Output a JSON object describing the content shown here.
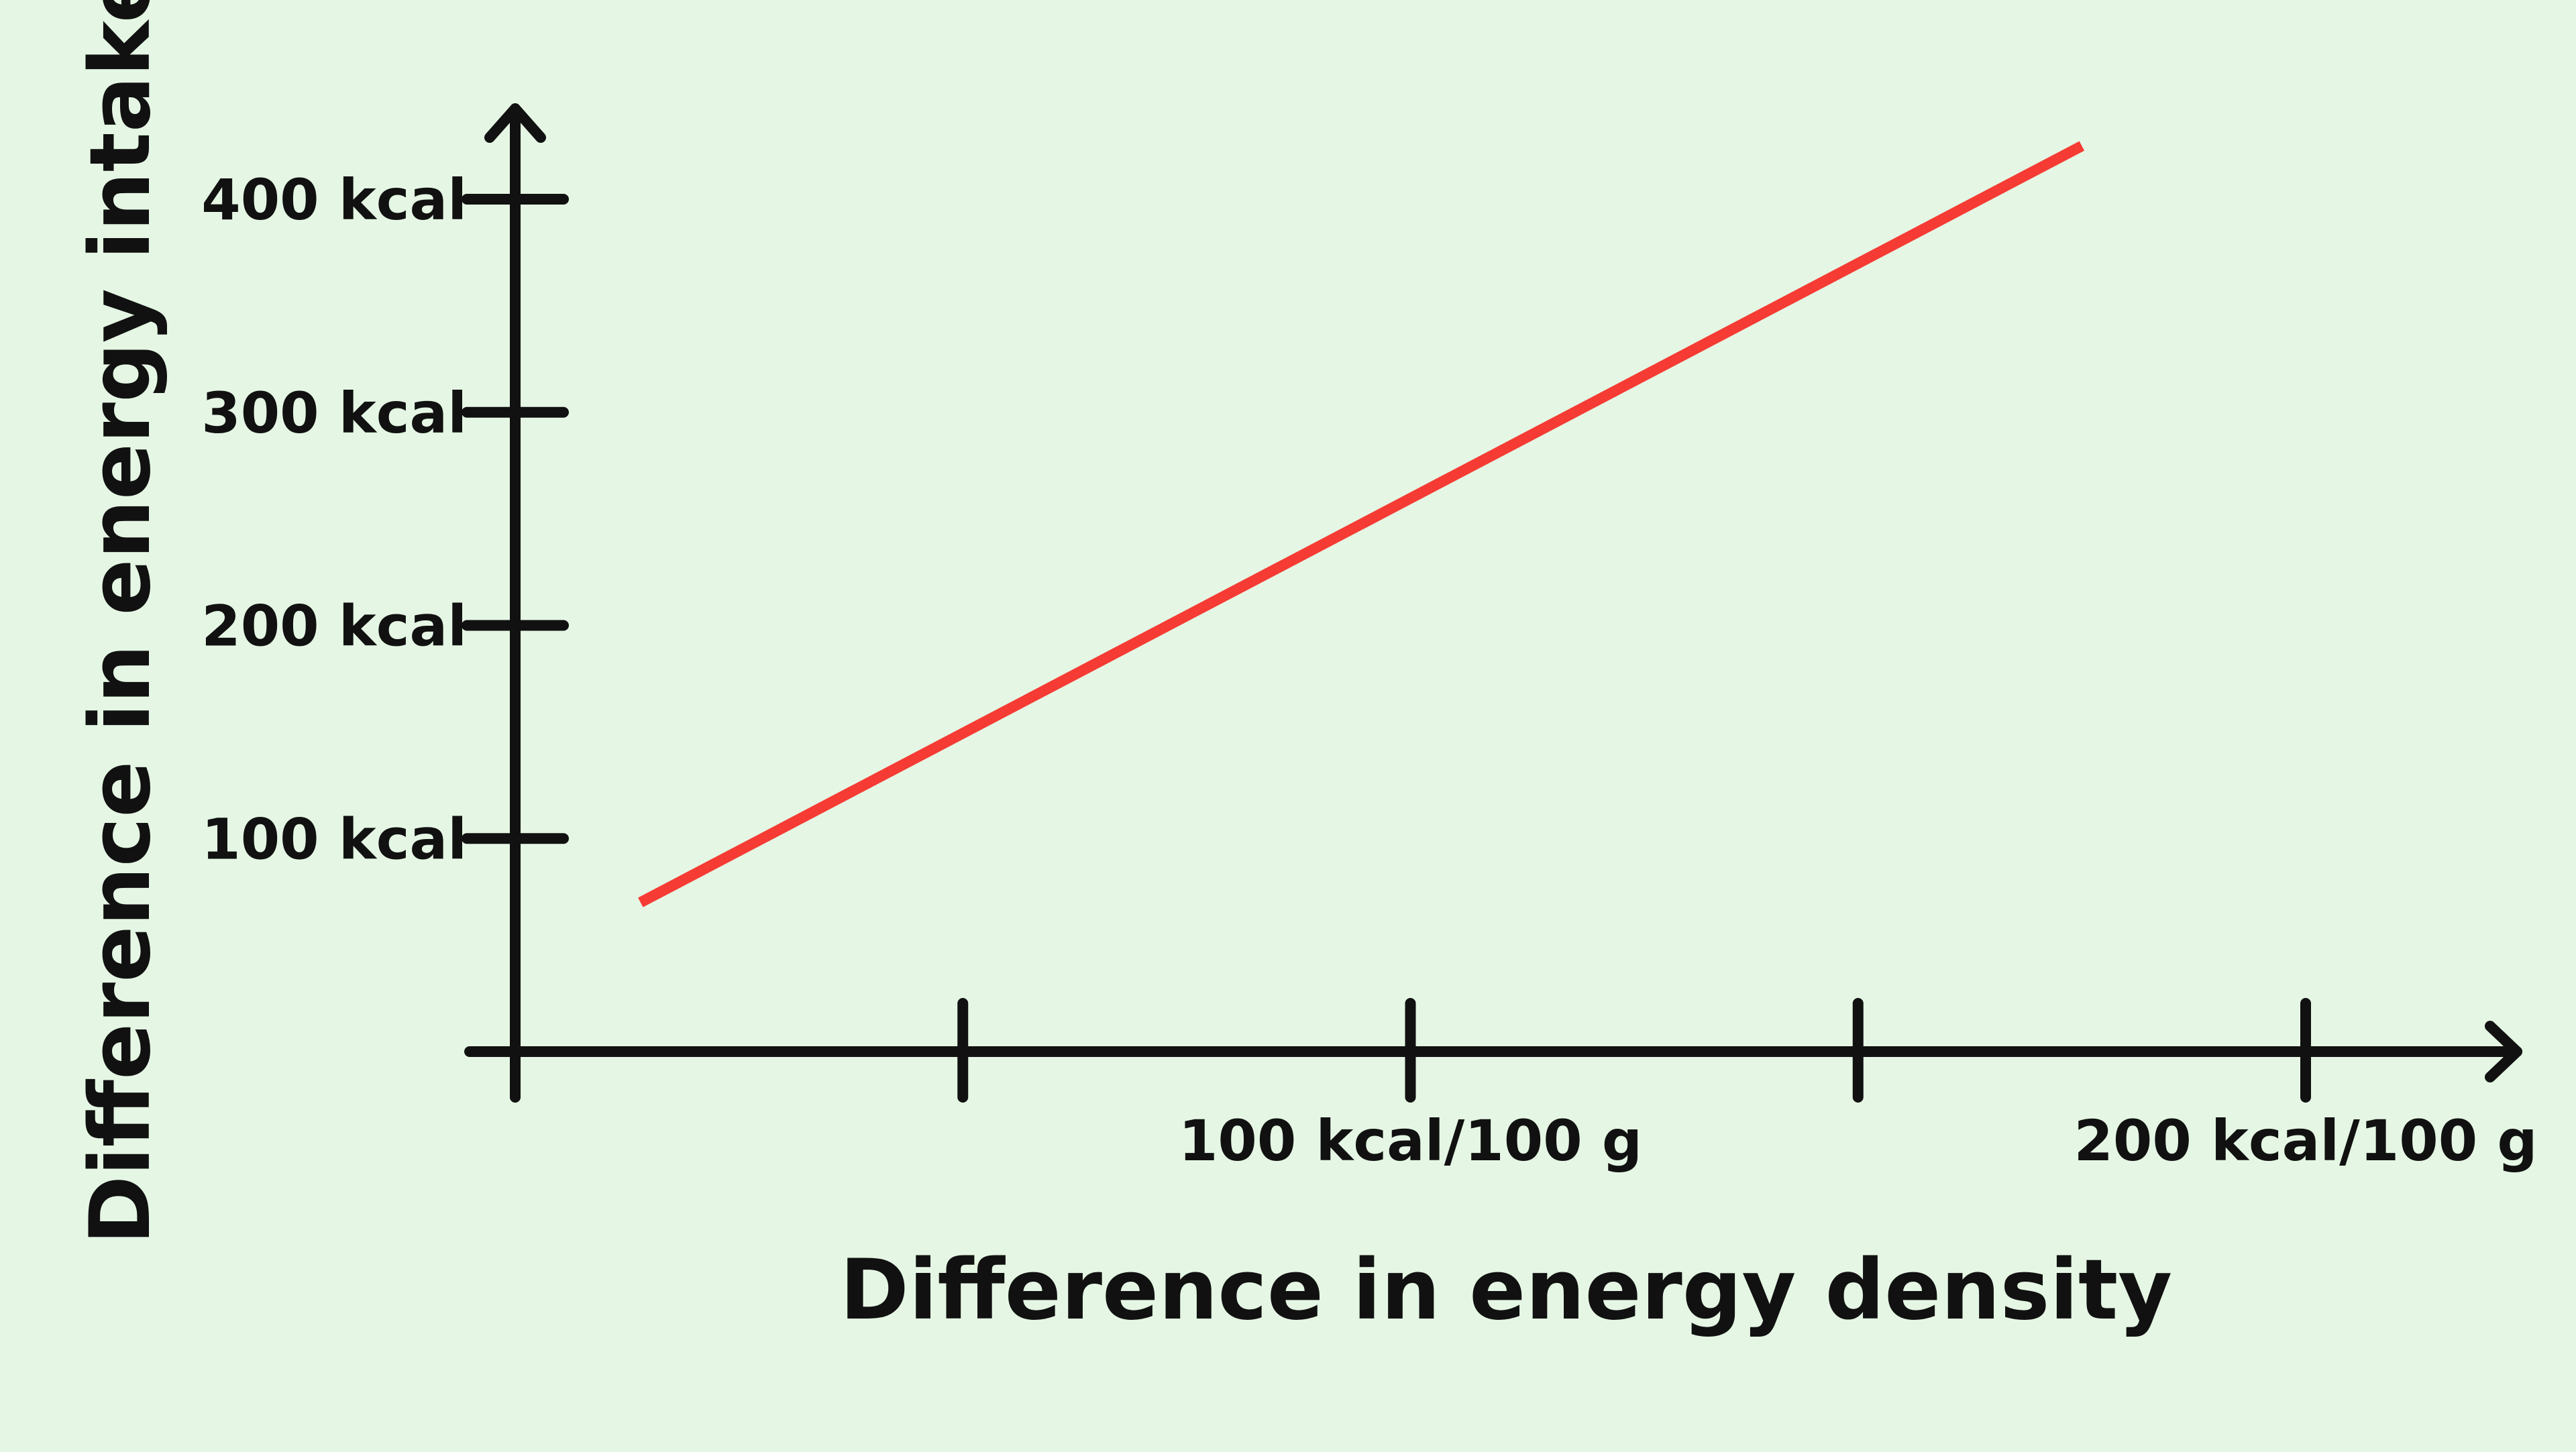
{
  "background_color": "#e5f7e4",
  "axis_color": "#111111",
  "chart_data": {
    "type": "line",
    "title": "",
    "xlabel": "Difference in energy density",
    "ylabel": "Difference in energy intake",
    "xlim": [
      0,
      200
    ],
    "ylim": [
      0,
      400
    ],
    "x_ticks": [
      0,
      50,
      100,
      150,
      200
    ],
    "x_tick_labels": [
      {
        "value": 100,
        "label": "100 kcal/100 g"
      },
      {
        "value": 200,
        "label": "200 kcal/100 g"
      }
    ],
    "y_ticks": [
      {
        "value": 100,
        "label": "100 kcal"
      },
      {
        "value": 200,
        "label": "200 kcal"
      },
      {
        "value": 300,
        "label": "300 kcal"
      },
      {
        "value": 400,
        "label": "400 kcal"
      }
    ],
    "grid": false,
    "legend": "none",
    "series": [
      {
        "color": "#f53b34",
        "points": [
          {
            "x": 14,
            "y": 70
          },
          {
            "x": 175,
            "y": 425
          }
        ]
      }
    ]
  }
}
